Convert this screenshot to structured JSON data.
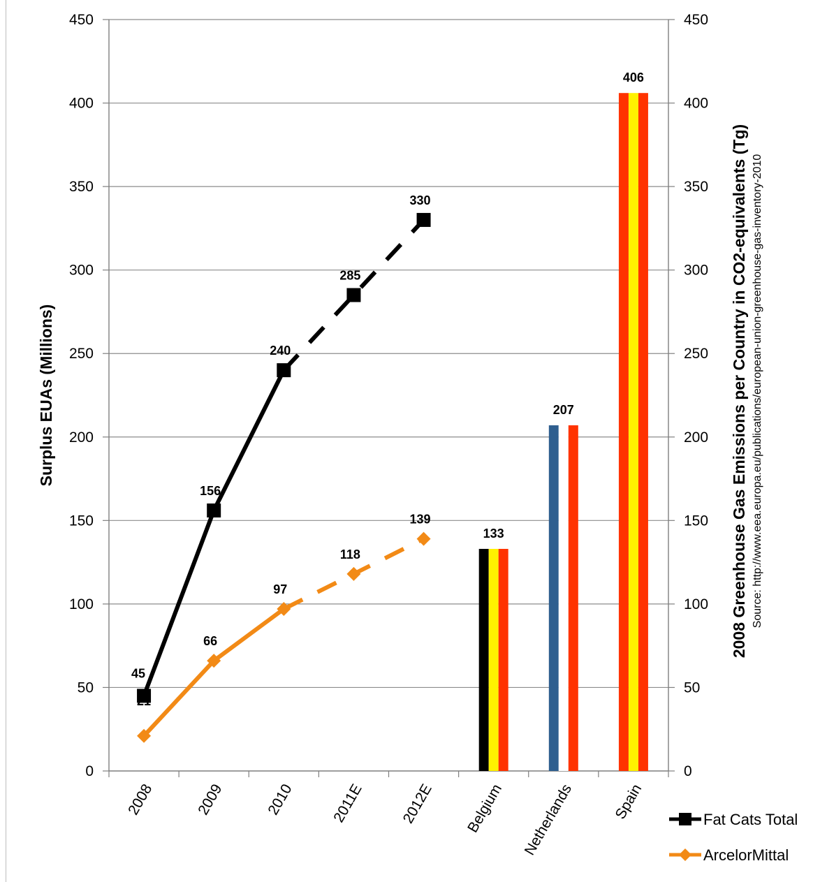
{
  "chart_data": {
    "type": "line",
    "categories": [
      "2008",
      "2009",
      "2010",
      "2011E",
      "2012E",
      "Belgium",
      "Netherlands",
      "Spain"
    ],
    "y_left": {
      "label": "Surplus EUAs (Millions)",
      "ylim": [
        0,
        450
      ],
      "ticks": [
        "0",
        "50",
        "100",
        "150",
        "200",
        "250",
        "300",
        "350",
        "400",
        "450"
      ]
    },
    "y_right": {
      "label": "2008 Greenhouse Gas Emissions per Country in CO2-equivalents (Tg)",
      "sublabel": "Source: http://www.eea.europa.eu/publications/european-union-greenhouse-gas-inventory-2010",
      "ylim": [
        0,
        450
      ],
      "ticks": [
        "0",
        "50",
        "100",
        "150",
        "200",
        "250",
        "300",
        "350",
        "400",
        "450"
      ]
    },
    "grid": true,
    "legend_position": "bottom-right",
    "series": [
      {
        "name": "Fat Cats Total",
        "kind": "line",
        "color": "#000000",
        "marker": "square",
        "x": [
          "2008",
          "2009",
          "2010",
          "2011E",
          "2012E"
        ],
        "values": [
          45,
          156,
          240,
          285,
          330
        ],
        "labels": [
          "45",
          "156",
          "240",
          "285",
          "330"
        ],
        "estimated_from": "2010"
      },
      {
        "name": "ArcelorMittal",
        "kind": "line",
        "color": "#F28A16",
        "marker": "diamond",
        "x": [
          "2008",
          "2009",
          "2010",
          "2011E",
          "2012E"
        ],
        "values": [
          21,
          66,
          97,
          118,
          139
        ],
        "labels": [
          "21",
          "66",
          "97",
          "118",
          "139"
        ],
        "estimated_from": "2010"
      }
    ],
    "country_bars": [
      {
        "category": "Belgium",
        "value": 133,
        "label": "133",
        "colors": [
          "#000000",
          "#FFF200",
          "#FF3300"
        ]
      },
      {
        "category": "Netherlands",
        "value": 207,
        "label": "207",
        "colors": [
          "#2F5F8F",
          "#FFFFFF",
          "#FF3300"
        ]
      },
      {
        "category": "Spain",
        "value": 406,
        "label": "406",
        "colors": [
          "#FF3300",
          "#FFF200",
          "#FF3300"
        ]
      }
    ],
    "gridline_color": "#8c8c8c",
    "axis_color": "#7f7f7f"
  }
}
